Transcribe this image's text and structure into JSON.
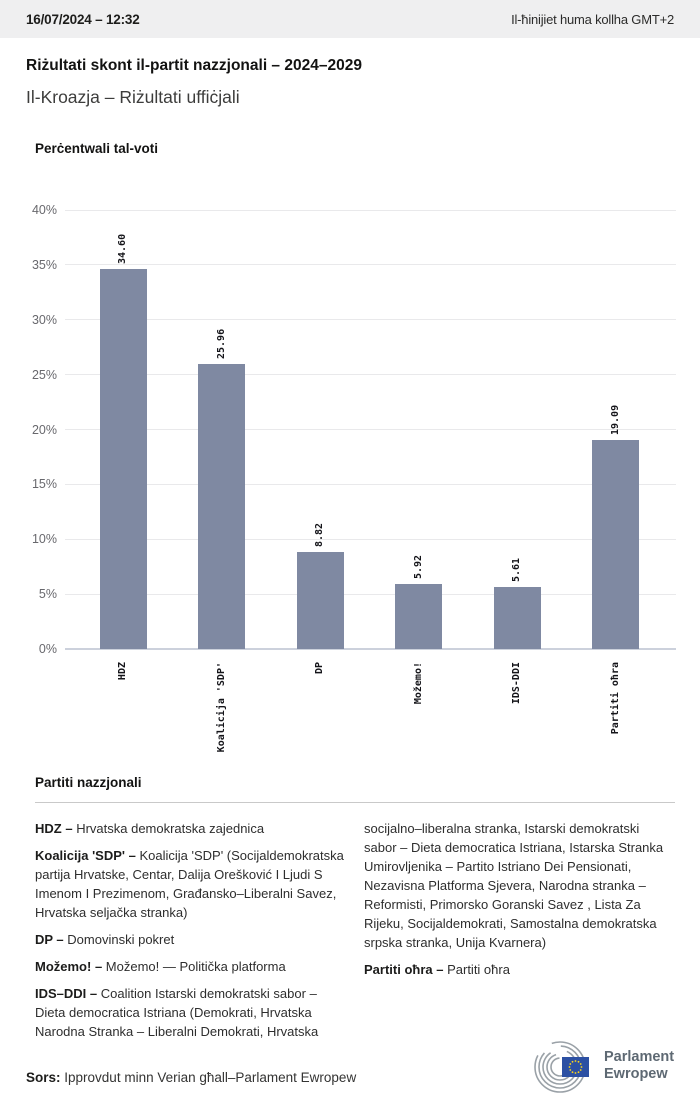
{
  "header": {
    "datetime": "16/07/2024 – 12:32",
    "timezone_note": "Il-ħinijiet huma kollha GMT+2"
  },
  "title": "Riżultati skont il-partit nazzjonali – 2024–2029",
  "subtitle": "Il-Kroazja – Riżultati uffiċjali",
  "chart_data": {
    "type": "bar",
    "title": "Perċentwali tal-voti",
    "categories": [
      "HDZ",
      "Koalicija 'SDP'",
      "DP",
      "Možemo!",
      "IDS-DDI",
      "Partiti oħra"
    ],
    "values": [
      34.6,
      25.96,
      8.82,
      5.92,
      5.61,
      19.09
    ],
    "value_labels": [
      "34.60",
      "25.96",
      "8.82",
      "5.92",
      "5.61",
      "19.09"
    ],
    "ylabel": "",
    "xlabel": "",
    "ylim": [
      0,
      40
    ],
    "ytick_step": 5,
    "ytick_suffix": "%",
    "grid": true,
    "legend": "none",
    "bar_color": "#7f89a2"
  },
  "party_list": {
    "heading": "Partiti nazzjonali",
    "items": [
      {
        "name": "HDZ –",
        "desc": "Hrvatska demokratska zajednica"
      },
      {
        "name": "Koalicija 'SDP' –",
        "desc": "Koalicija 'SDP' (Socijaldemokratska partija Hrvatske, Centar, Dalija Orešković I Ljudi S Imenom I Prezimenom, Građansko–Liberalni Savez, Hrvatska seljačka stranka)"
      },
      {
        "name": "DP –",
        "desc": "Domovinski pokret"
      },
      {
        "name": "Možemo! –",
        "desc": "Možemo! — Politička platforma"
      },
      {
        "name": "IDS–DDI –",
        "desc": "Coalition Istarski demokratski sabor – Dieta democratica Istriana (Demokrati, Hrvatska Narodna Stranka – Liberalni Demokrati, Hrvatska socijalno–liberalna stranka, Istarski demokratski sabor – Dieta democratica Istriana, Istarska Stranka Umirovljenika – Partito Istriano Dei Pensionati, Nezavisna Platforma Sjevera, Narodna stranka – Reformisti, Primorsko Goranski Savez , Lista Za Rijeku, Socijaldemokrati, Samostalna demokratska srpska stranka, Unija Kvarnera)"
      },
      {
        "name": "Partiti oħra –",
        "desc": "Partiti oħra"
      }
    ]
  },
  "footer": {
    "source_label": "Sors:",
    "source_text": "Ipprovdut minn Verian għall–Parlament Ewropew",
    "logo_line1": "Parlament",
    "logo_line2": "Ewropew"
  },
  "colors": {
    "bar": "#7f89a2",
    "topbar_bg": "#efeff0",
    "flag_blue": "#2c50a3",
    "flag_stars": "#ffd617"
  }
}
